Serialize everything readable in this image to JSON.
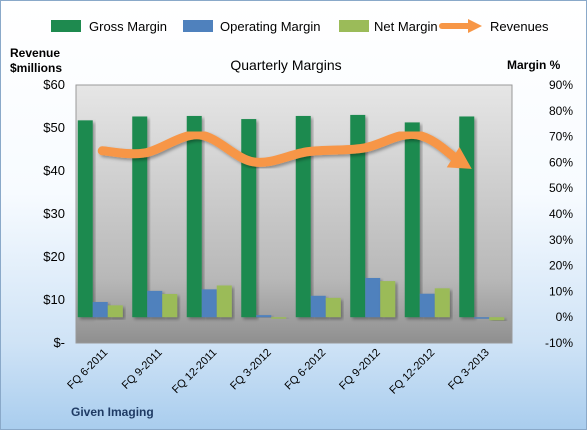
{
  "chart_data": {
    "type": "bar",
    "title": "Quarterly Margins",
    "left_axis_label_line1": "Revenue",
    "left_axis_label_line2": "$millions",
    "right_axis_label": "Margin %",
    "footer_label": "Given Imaging",
    "categories": [
      "FQ 6-2011",
      "FQ 9-2011",
      "FQ 12-2011",
      "FQ 3-2012",
      "FQ 6-2012",
      "FQ 9-2012",
      "FQ 12-2012",
      "FQ 3-2013"
    ],
    "left_axis": {
      "min": 0,
      "max": 60,
      "ticks": [
        "$-",
        "$10",
        "$20",
        "$30",
        "$40",
        "$50",
        "$60"
      ]
    },
    "right_axis": {
      "min": -10,
      "max": 90,
      "ticks": [
        "-10%",
        "0%",
        "10%",
        "20%",
        "30%",
        "40%",
        "50%",
        "60%",
        "70%",
        "80%",
        "90%"
      ]
    },
    "series": [
      {
        "name": "Gross Margin",
        "type": "bar",
        "axis": "right",
        "color": "#1e8a4f",
        "values": [
          76.3,
          77.8,
          78.0,
          76.8,
          78.0,
          78.4,
          75.5,
          77.8
        ]
      },
      {
        "name": "Operating Margin",
        "type": "bar",
        "axis": "right",
        "color": "#4f81bd",
        "values": [
          5.9,
          10.2,
          10.8,
          0.8,
          8.3,
          15.2,
          9.1,
          -0.3
        ]
      },
      {
        "name": "Net Margin",
        "type": "bar",
        "axis": "right",
        "color": "#9bbb59",
        "values": [
          4.6,
          9.0,
          12.3,
          -0.3,
          7.5,
          14.0,
          11.2,
          -1.2
        ]
      },
      {
        "name": "Revenues",
        "type": "line",
        "axis": "left",
        "color": "#f79646",
        "values": [
          44.7,
          44.2,
          48.4,
          42.1,
          44.5,
          45.3,
          48.4,
          40.5
        ]
      }
    ],
    "legend_position": "top",
    "grid": false
  }
}
